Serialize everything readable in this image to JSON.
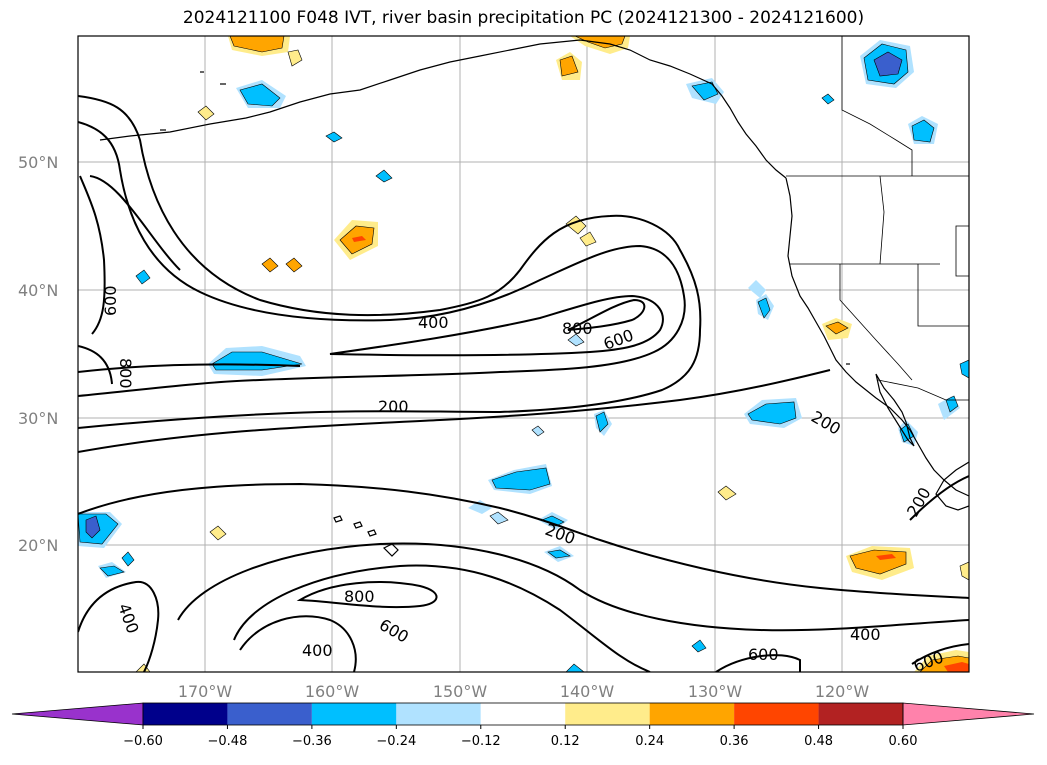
{
  "title": "2024121100 F048 IVT, river basin precipitation PC (2024121300 - 2024121600)",
  "latitude_labels": [
    "50°N",
    "40°N",
    "30°N",
    "20°N"
  ],
  "longitude_labels": [
    "170°W",
    "160°W",
    "150°W",
    "140°W",
    "130°W",
    "120°W"
  ],
  "ivt_contour_labels": [
    "400",
    "800",
    "600",
    "200",
    "600",
    "800",
    "200",
    "200",
    "200",
    "800",
    "600",
    "400",
    "400",
    "600",
    "400",
    "600"
  ],
  "colorbar": {
    "tick_labels": [
      "−0.60",
      "−0.48",
      "−0.36",
      "−0.24",
      "−0.12",
      "0.12",
      "0.24",
      "0.36",
      "0.48",
      "0.60"
    ],
    "colors": [
      "#9932cc",
      "#00008b",
      "#3a5fcd",
      "#00bfff",
      "#b0e2ff",
      "#ffffff",
      "#ffec8b",
      "#ffa500",
      "#ff4500",
      "#b22222",
      "#ff82ab"
    ]
  },
  "legend_colors": {
    "strong_negative": "#3a5fcd",
    "negative": "#00bfff",
    "weak_negative": "#b0e2ff",
    "weak_positive": "#ffec8b",
    "positive": "#ffa500",
    "strong_positive": "#ff4500"
  }
}
